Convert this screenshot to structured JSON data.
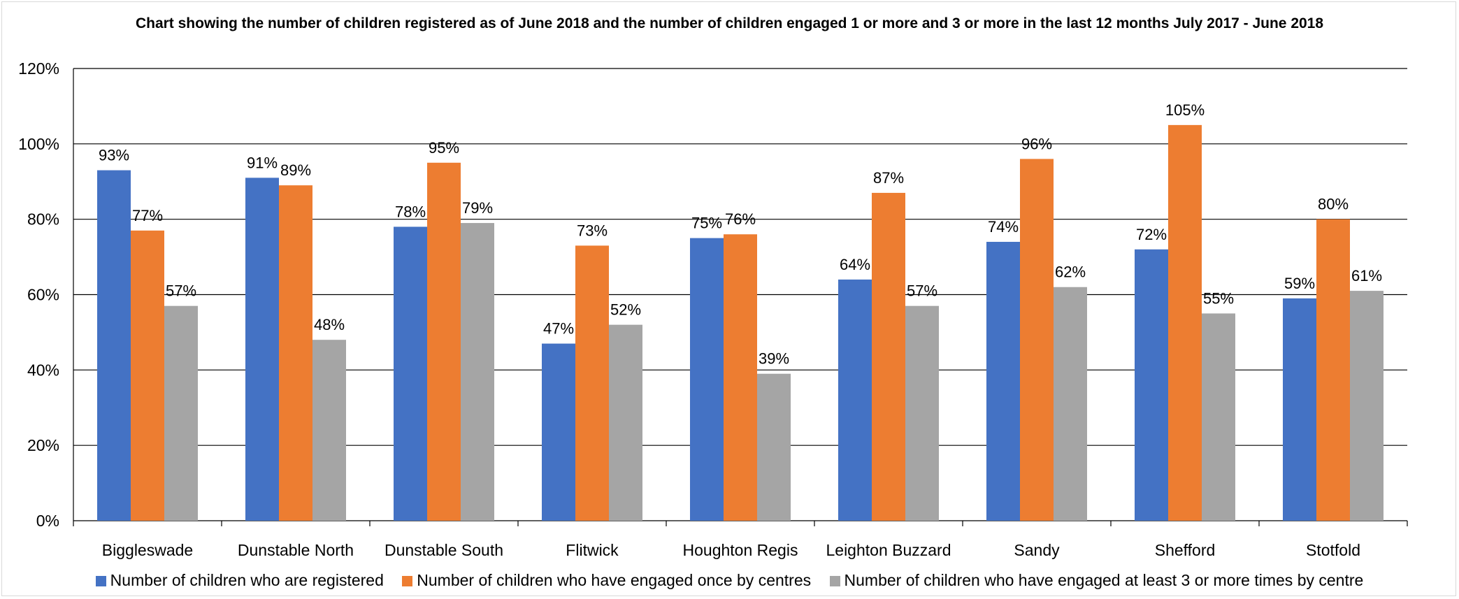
{
  "chart_data": {
    "type": "bar",
    "title": "Chart showing the number of children registered as of June 2018 and the number of children engaged 1 or more and 3 or more in the last 12 months July 2017 - June 2018",
    "categories": [
      "Biggleswade",
      "Dunstable North",
      "Dunstable South",
      "Flitwick",
      "Houghton Regis",
      "Leighton Buzzard",
      "Sandy",
      "Shefford",
      "Stotfold"
    ],
    "series": [
      {
        "name": "Number of children who are registered",
        "color": "#4472c4",
        "values": [
          93,
          91,
          78,
          47,
          75,
          64,
          74,
          72,
          59
        ]
      },
      {
        "name": "Number of children who have engaged once by centres",
        "color": "#ed7d31",
        "values": [
          77,
          89,
          95,
          73,
          76,
          87,
          96,
          105,
          80
        ]
      },
      {
        "name": "Number of children who have engaged at least 3 or more times by centre",
        "color": "#a5a5a5",
        "values": [
          57,
          48,
          79,
          52,
          39,
          57,
          62,
          55,
          61
        ]
      }
    ],
    "ylim": [
      0,
      120
    ],
    "yticks": [
      "0%",
      "20%",
      "40%",
      "60%",
      "80%",
      "100%",
      "120%"
    ],
    "value_suffix": "%",
    "grid": true,
    "legend_position": "bottom"
  }
}
